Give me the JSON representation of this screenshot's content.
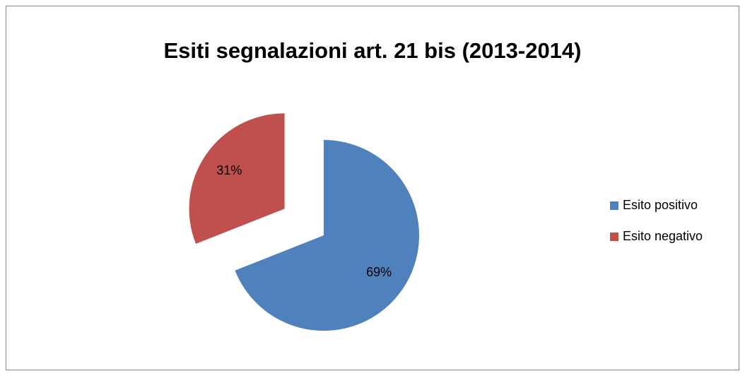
{
  "chart_data": {
    "type": "pie",
    "title": "Esiti segnalazioni art. 21 bis (2013-2014)",
    "categories": [
      "Esito positivo",
      "Esito negativo"
    ],
    "values": [
      69,
      31
    ],
    "value_labels": [
      "69%",
      "31%"
    ],
    "colors": [
      "#4f81bd",
      "#c0504d"
    ],
    "legend": "right"
  }
}
